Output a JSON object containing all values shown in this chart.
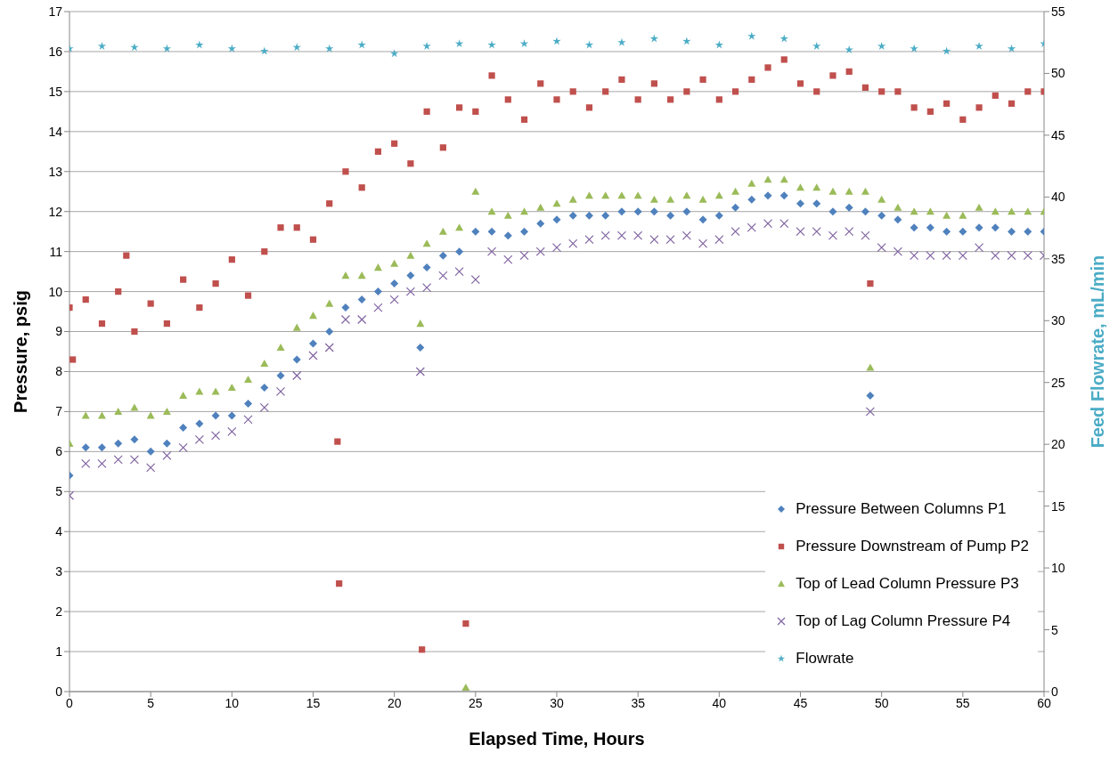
{
  "chart_data": {
    "type": "scatter",
    "xlabel": "Elapsed Time, Hours",
    "ylabel": "Pressure, psig",
    "y2label": "Feed Flowrate, mL/min",
    "xlim": [
      0,
      60
    ],
    "xticks": [
      0,
      5,
      10,
      15,
      20,
      25,
      30,
      35,
      40,
      45,
      50,
      55,
      60
    ],
    "ylim": [
      0,
      17
    ],
    "yticks": [
      0,
      1,
      2,
      3,
      4,
      5,
      6,
      7,
      8,
      9,
      10,
      11,
      12,
      13,
      14,
      15,
      16,
      17
    ],
    "y2lim": [
      0,
      55
    ],
    "y2ticks": [
      0,
      5,
      10,
      15,
      20,
      25,
      30,
      35,
      40,
      45,
      50,
      55
    ],
    "grid": "y",
    "legend": "bottom right",
    "series": [
      {
        "name": "Pressure Between Columns P1",
        "color": "#4f81bd",
        "marker": "diamond",
        "x": [
          0,
          1,
          2,
          3,
          4,
          5,
          6,
          7,
          8,
          9,
          10,
          11,
          12,
          13,
          14,
          15,
          16,
          17,
          18,
          19,
          20,
          21,
          21.6,
          22,
          23,
          24,
          25,
          26,
          27,
          28,
          29,
          30,
          31,
          32,
          33,
          34,
          35,
          36,
          37,
          38,
          39,
          40,
          41,
          42,
          43,
          44,
          45,
          46,
          47,
          48,
          49,
          49.3,
          50,
          51,
          52,
          53,
          54,
          55,
          56,
          57,
          58,
          59,
          60
        ],
        "values": [
          5.4,
          6.1,
          6.1,
          6.2,
          6.3,
          6.0,
          6.2,
          6.6,
          6.7,
          6.9,
          6.9,
          7.2,
          7.6,
          7.9,
          8.3,
          8.7,
          9.0,
          9.6,
          9.8,
          10.0,
          10.2,
          10.4,
          8.6,
          10.6,
          10.9,
          11.0,
          11.5,
          11.5,
          11.4,
          11.5,
          11.7,
          11.8,
          11.9,
          11.9,
          11.9,
          12.0,
          12.0,
          12.0,
          11.9,
          12.0,
          11.8,
          11.9,
          12.1,
          12.3,
          12.4,
          12.4,
          12.2,
          12.2,
          12.0,
          12.1,
          12.0,
          7.4,
          11.9,
          11.8,
          11.6,
          11.6,
          11.5,
          11.5,
          11.6,
          11.6,
          11.5,
          11.5,
          11.5
        ]
      },
      {
        "name": "Pressure Downstream of Pump P2",
        "color": "#c0504d",
        "marker": "square",
        "x": [
          0,
          0.2,
          1,
          2,
          3,
          3.5,
          4,
          5,
          6,
          7,
          8,
          9,
          10,
          11,
          12,
          13,
          14,
          15,
          16,
          16.5,
          16.6,
          17,
          18,
          19,
          20,
          21,
          21.7,
          22,
          23,
          24,
          24.4,
          25,
          26,
          27,
          28,
          29,
          30,
          31,
          32,
          33,
          34,
          35,
          36,
          37,
          38,
          39,
          40,
          41,
          42,
          43,
          44,
          45,
          46,
          47,
          48,
          49,
          49.3,
          50,
          51,
          52,
          53,
          54,
          55,
          56,
          57,
          58,
          59,
          60
        ],
        "values": [
          9.6,
          8.3,
          9.8,
          9.2,
          10.0,
          10.9,
          9.0,
          9.7,
          9.2,
          10.3,
          9.6,
          10.2,
          10.8,
          9.9,
          11.0,
          11.6,
          11.6,
          11.3,
          12.2,
          6.25,
          2.7,
          13.0,
          12.6,
          13.5,
          13.7,
          13.2,
          1.05,
          14.5,
          13.6,
          14.6,
          1.7,
          14.5,
          15.4,
          14.8,
          14.3,
          15.2,
          14.8,
          15.0,
          14.6,
          15.0,
          15.3,
          14.8,
          15.2,
          14.8,
          15.0,
          15.3,
          14.8,
          15.0,
          15.3,
          15.6,
          15.8,
          15.2,
          15.0,
          15.4,
          15.5,
          15.1,
          10.2,
          15.0,
          15.0,
          14.6,
          14.5,
          14.7,
          14.3,
          14.6,
          14.9,
          14.7,
          15.0,
          15.0
        ]
      },
      {
        "name": "Top of Lead Column Pressure P3",
        "color": "#9bbb59",
        "marker": "triangle",
        "x": [
          0,
          1,
          2,
          3,
          4,
          5,
          6,
          7,
          8,
          9,
          10,
          11,
          12,
          13,
          14,
          15,
          16,
          17,
          18,
          19,
          20,
          21,
          21.6,
          22,
          23,
          24,
          24.4,
          25,
          26,
          27,
          28,
          29,
          30,
          31,
          32,
          33,
          34,
          35,
          36,
          37,
          38,
          39,
          40,
          41,
          42,
          43,
          44,
          45,
          46,
          47,
          48,
          49,
          49.3,
          50,
          51,
          52,
          53,
          54,
          55,
          56,
          57,
          58,
          59,
          60
        ],
        "values": [
          6.2,
          6.9,
          6.9,
          7.0,
          7.1,
          6.9,
          7.0,
          7.4,
          7.5,
          7.5,
          7.6,
          7.8,
          8.2,
          8.6,
          9.1,
          9.4,
          9.7,
          10.4,
          10.4,
          10.6,
          10.7,
          10.9,
          9.2,
          11.2,
          11.5,
          11.6,
          0.1,
          12.5,
          12.0,
          11.9,
          12.0,
          12.1,
          12.2,
          12.3,
          12.4,
          12.4,
          12.4,
          12.4,
          12.3,
          12.3,
          12.4,
          12.3,
          12.4,
          12.5,
          12.7,
          12.8,
          12.8,
          12.6,
          12.6,
          12.5,
          12.5,
          12.5,
          8.1,
          12.3,
          12.1,
          12.0,
          12.0,
          11.9,
          11.9,
          12.1,
          12.0,
          12.0,
          12.0,
          12.0
        ]
      },
      {
        "name": "Top of Lag Column Pressure P4",
        "color": "#8064a2",
        "marker": "cross",
        "x": [
          0,
          1,
          2,
          3,
          4,
          5,
          6,
          7,
          8,
          9,
          10,
          11,
          12,
          13,
          14,
          15,
          16,
          17,
          18,
          19,
          20,
          21,
          21.6,
          22,
          23,
          24,
          25,
          26,
          27,
          28,
          29,
          30,
          31,
          32,
          33,
          34,
          35,
          36,
          37,
          38,
          39,
          40,
          41,
          42,
          43,
          44,
          45,
          46,
          47,
          48,
          49,
          49.3,
          50,
          51,
          52,
          53,
          54,
          55,
          56,
          57,
          58,
          59,
          60
        ],
        "values": [
          4.9,
          5.7,
          5.7,
          5.8,
          5.8,
          5.6,
          5.9,
          6.1,
          6.3,
          6.4,
          6.5,
          6.8,
          7.1,
          7.5,
          7.9,
          8.4,
          8.6,
          9.3,
          9.3,
          9.6,
          9.8,
          10.0,
          8.0,
          10.1,
          10.4,
          10.5,
          10.3,
          11.0,
          10.8,
          10.9,
          11.0,
          11.1,
          11.2,
          11.3,
          11.4,
          11.4,
          11.4,
          11.3,
          11.3,
          11.4,
          11.2,
          11.3,
          11.5,
          11.6,
          11.7,
          11.7,
          11.5,
          11.5,
          11.4,
          11.5,
          11.4,
          7.0,
          11.1,
          11.0,
          10.9,
          10.9,
          10.9,
          10.9,
          11.1,
          10.9,
          10.9,
          10.9,
          10.9
        ]
      },
      {
        "name": "Flowrate",
        "color": "#4bacc6",
        "marker": "star",
        "axis": "y2",
        "x": [
          0,
          2,
          4,
          6,
          8,
          10,
          12,
          14,
          16,
          18,
          20,
          22,
          24,
          26,
          28,
          30,
          32,
          34,
          36,
          38,
          40,
          42,
          44,
          46,
          48,
          50,
          52,
          54,
          56,
          58,
          60
        ],
        "values": [
          52.0,
          52.2,
          52.1,
          52.0,
          52.3,
          52.0,
          51.8,
          52.1,
          52.0,
          52.3,
          51.6,
          52.2,
          52.4,
          52.3,
          52.4,
          52.6,
          52.3,
          52.5,
          52.8,
          52.6,
          52.3,
          53.0,
          52.8,
          52.2,
          51.9,
          52.2,
          52.0,
          51.8,
          52.2,
          52.0,
          52.4
        ]
      }
    ]
  }
}
